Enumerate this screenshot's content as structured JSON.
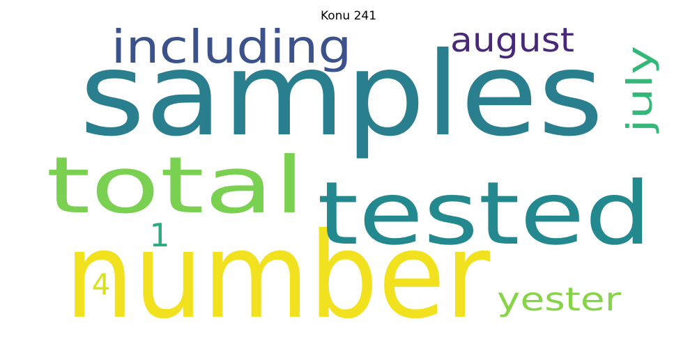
{
  "title": "Konu 241",
  "words": [
    {
      "text": "samples",
      "color": "#2a7f8e"
    },
    {
      "text": "number",
      "color": "#f2e11e"
    },
    {
      "text": "tested",
      "color": "#23898e"
    },
    {
      "text": "total",
      "color": "#7ad151"
    },
    {
      "text": "including",
      "color": "#3b528b"
    },
    {
      "text": "august",
      "color": "#482878"
    },
    {
      "text": "july",
      "color": "#35b779"
    },
    {
      "text": "yester",
      "color": "#86d549"
    },
    {
      "text": "1",
      "color": "#27ad81"
    },
    {
      "text": "4",
      "color": "#d8e219"
    }
  ]
}
